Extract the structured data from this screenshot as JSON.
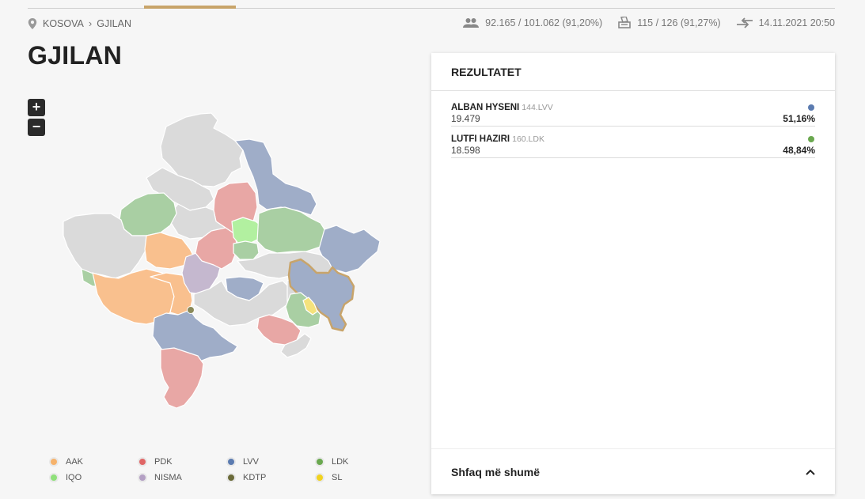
{
  "breadcrumb": {
    "root": "KOSOVA",
    "current": "GJILAN"
  },
  "stats": {
    "voters": "92.165 / 101.062 (91,20%)",
    "stations": "115 / 126 (91,27%)",
    "updated": "14.11.2021 20:50"
  },
  "page_title": "GJILAN",
  "zoom": {
    "in_label": "+",
    "out_label": "−"
  },
  "legend": [
    {
      "label": "AAK",
      "color": "#f6b26b"
    },
    {
      "label": "PDK",
      "color": "#e06666"
    },
    {
      "label": "LVV",
      "color": "#5b7bb0"
    },
    {
      "label": "LDK",
      "color": "#6aa84f"
    },
    {
      "label": "IQO",
      "color": "#8fe07a"
    },
    {
      "label": "NISMA",
      "color": "#b4a0c4"
    },
    {
      "label": "KDTP",
      "color": "#6b6b3a"
    },
    {
      "label": "SL",
      "color": "#f1d21e"
    }
  ],
  "panel": {
    "title": "REZULTATET",
    "results": [
      {
        "name": "ALBAN HYSENI",
        "code": "144.LVV",
        "votes": "19.479",
        "percent": "51,16%",
        "color": "#5b7bb0"
      },
      {
        "name": "LUTFI HAZIRI",
        "code": "160.LDK",
        "votes": "18.598",
        "percent": "48,84%",
        "color": "#6aa84f"
      }
    ],
    "show_more": "Shfaq më shumë"
  }
}
